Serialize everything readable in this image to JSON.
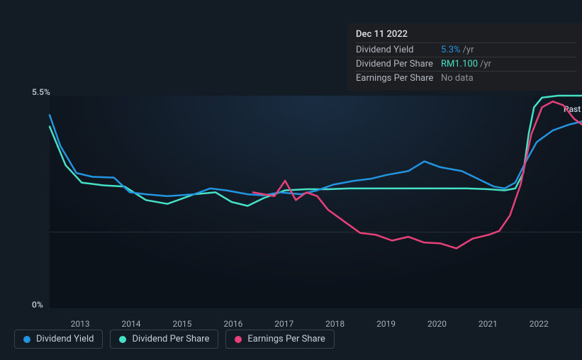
{
  "chart": {
    "type": "line",
    "background_gradient": [
      "#1a3450",
      "#0c141e"
    ],
    "grid_color": "rgba(180,190,210,0.15)",
    "ylim": [
      0,
      5.5
    ],
    "y_axis": {
      "top_label": "5.5%",
      "bottom_label": "0%",
      "label_fontsize": 12,
      "label_color": "#c5cdd6"
    },
    "x_axis": {
      "years": [
        "2013",
        "2014",
        "2015",
        "2016",
        "2017",
        "2018",
        "2019",
        "2020",
        "2021",
        "2022"
      ],
      "label_fontsize": 12,
      "label_color": "#a5adb8"
    },
    "past_label": "Past",
    "line_width": 2.5,
    "series": {
      "dividend_yield": {
        "label": "Dividend Yield",
        "color": "#2394df",
        "points": [
          [
            0.0,
            5.0
          ],
          [
            0.02,
            4.2
          ],
          [
            0.05,
            3.5
          ],
          [
            0.08,
            3.4
          ],
          [
            0.12,
            3.38
          ],
          [
            0.15,
            3.0
          ],
          [
            0.18,
            2.95
          ],
          [
            0.22,
            2.9
          ],
          [
            0.27,
            2.95
          ],
          [
            0.3,
            3.1
          ],
          [
            0.33,
            3.05
          ],
          [
            0.37,
            2.95
          ],
          [
            0.4,
            2.92
          ],
          [
            0.43,
            3.0
          ],
          [
            0.47,
            2.95
          ],
          [
            0.5,
            3.05
          ],
          [
            0.53,
            3.2
          ],
          [
            0.57,
            3.3
          ],
          [
            0.6,
            3.35
          ],
          [
            0.63,
            3.45
          ],
          [
            0.67,
            3.55
          ],
          [
            0.7,
            3.8
          ],
          [
            0.73,
            3.65
          ],
          [
            0.77,
            3.55
          ],
          [
            0.8,
            3.35
          ],
          [
            0.83,
            3.15
          ],
          [
            0.85,
            3.1
          ],
          [
            0.87,
            3.25
          ],
          [
            0.89,
            3.8
          ],
          [
            0.91,
            4.3
          ],
          [
            0.94,
            4.6
          ],
          [
            0.97,
            4.75
          ],
          [
            1.0,
            4.85
          ]
        ]
      },
      "dividend_per_share": {
        "label": "Dividend Per Share",
        "color": "#46e0c6",
        "points": [
          [
            0.0,
            4.7
          ],
          [
            0.03,
            3.7
          ],
          [
            0.06,
            3.25
          ],
          [
            0.1,
            3.18
          ],
          [
            0.14,
            3.15
          ],
          [
            0.18,
            2.8
          ],
          [
            0.22,
            2.7
          ],
          [
            0.27,
            2.95
          ],
          [
            0.31,
            3.0
          ],
          [
            0.34,
            2.75
          ],
          [
            0.37,
            2.65
          ],
          [
            0.4,
            2.85
          ],
          [
            0.44,
            3.05
          ],
          [
            0.48,
            3.08
          ],
          [
            0.52,
            3.08
          ],
          [
            0.56,
            3.1
          ],
          [
            0.61,
            3.1
          ],
          [
            0.65,
            3.1
          ],
          [
            0.7,
            3.1
          ],
          [
            0.74,
            3.1
          ],
          [
            0.78,
            3.1
          ],
          [
            0.82,
            3.08
          ],
          [
            0.85,
            3.05
          ],
          [
            0.87,
            3.1
          ],
          [
            0.885,
            3.5
          ],
          [
            0.895,
            4.5
          ],
          [
            0.905,
            5.2
          ],
          [
            0.92,
            5.45
          ],
          [
            0.95,
            5.5
          ],
          [
            1.0,
            5.5
          ]
        ]
      },
      "earnings_per_share": {
        "label": "Earnings Per Share",
        "color": "#e8417a",
        "points": [
          [
            0.38,
            3.0
          ],
          [
            0.4,
            2.95
          ],
          [
            0.42,
            2.9
          ],
          [
            0.44,
            3.3
          ],
          [
            0.46,
            2.8
          ],
          [
            0.48,
            3.0
          ],
          [
            0.5,
            2.9
          ],
          [
            0.52,
            2.55
          ],
          [
            0.55,
            2.25
          ],
          [
            0.58,
            1.95
          ],
          [
            0.61,
            1.9
          ],
          [
            0.64,
            1.75
          ],
          [
            0.67,
            1.85
          ],
          [
            0.7,
            1.7
          ],
          [
            0.73,
            1.68
          ],
          [
            0.76,
            1.55
          ],
          [
            0.79,
            1.8
          ],
          [
            0.82,
            1.9
          ],
          [
            0.84,
            2.0
          ],
          [
            0.86,
            2.4
          ],
          [
            0.88,
            3.2
          ],
          [
            0.9,
            4.5
          ],
          [
            0.92,
            5.2
          ],
          [
            0.94,
            5.35
          ],
          [
            0.96,
            5.25
          ],
          [
            0.98,
            4.9
          ],
          [
            1.0,
            4.7
          ]
        ]
      }
    }
  },
  "tooltip": {
    "date": "Dec 11 2022",
    "rows": [
      {
        "label": "Dividend Yield",
        "value": "5.3%",
        "unit": "/yr",
        "value_color": "#2394df"
      },
      {
        "label": "Dividend Per Share",
        "value": "RM1.100",
        "unit": "/yr",
        "value_color": "#46e0c6"
      },
      {
        "label": "Earnings Per Share",
        "value": "No data",
        "unit": "",
        "value_color": "#8a909a"
      }
    ]
  },
  "legend": [
    {
      "label": "Dividend Yield",
      "color": "#2394df"
    },
    {
      "label": "Dividend Per Share",
      "color": "#46e0c6"
    },
    {
      "label": "Earnings Per Share",
      "color": "#e8417a"
    }
  ]
}
